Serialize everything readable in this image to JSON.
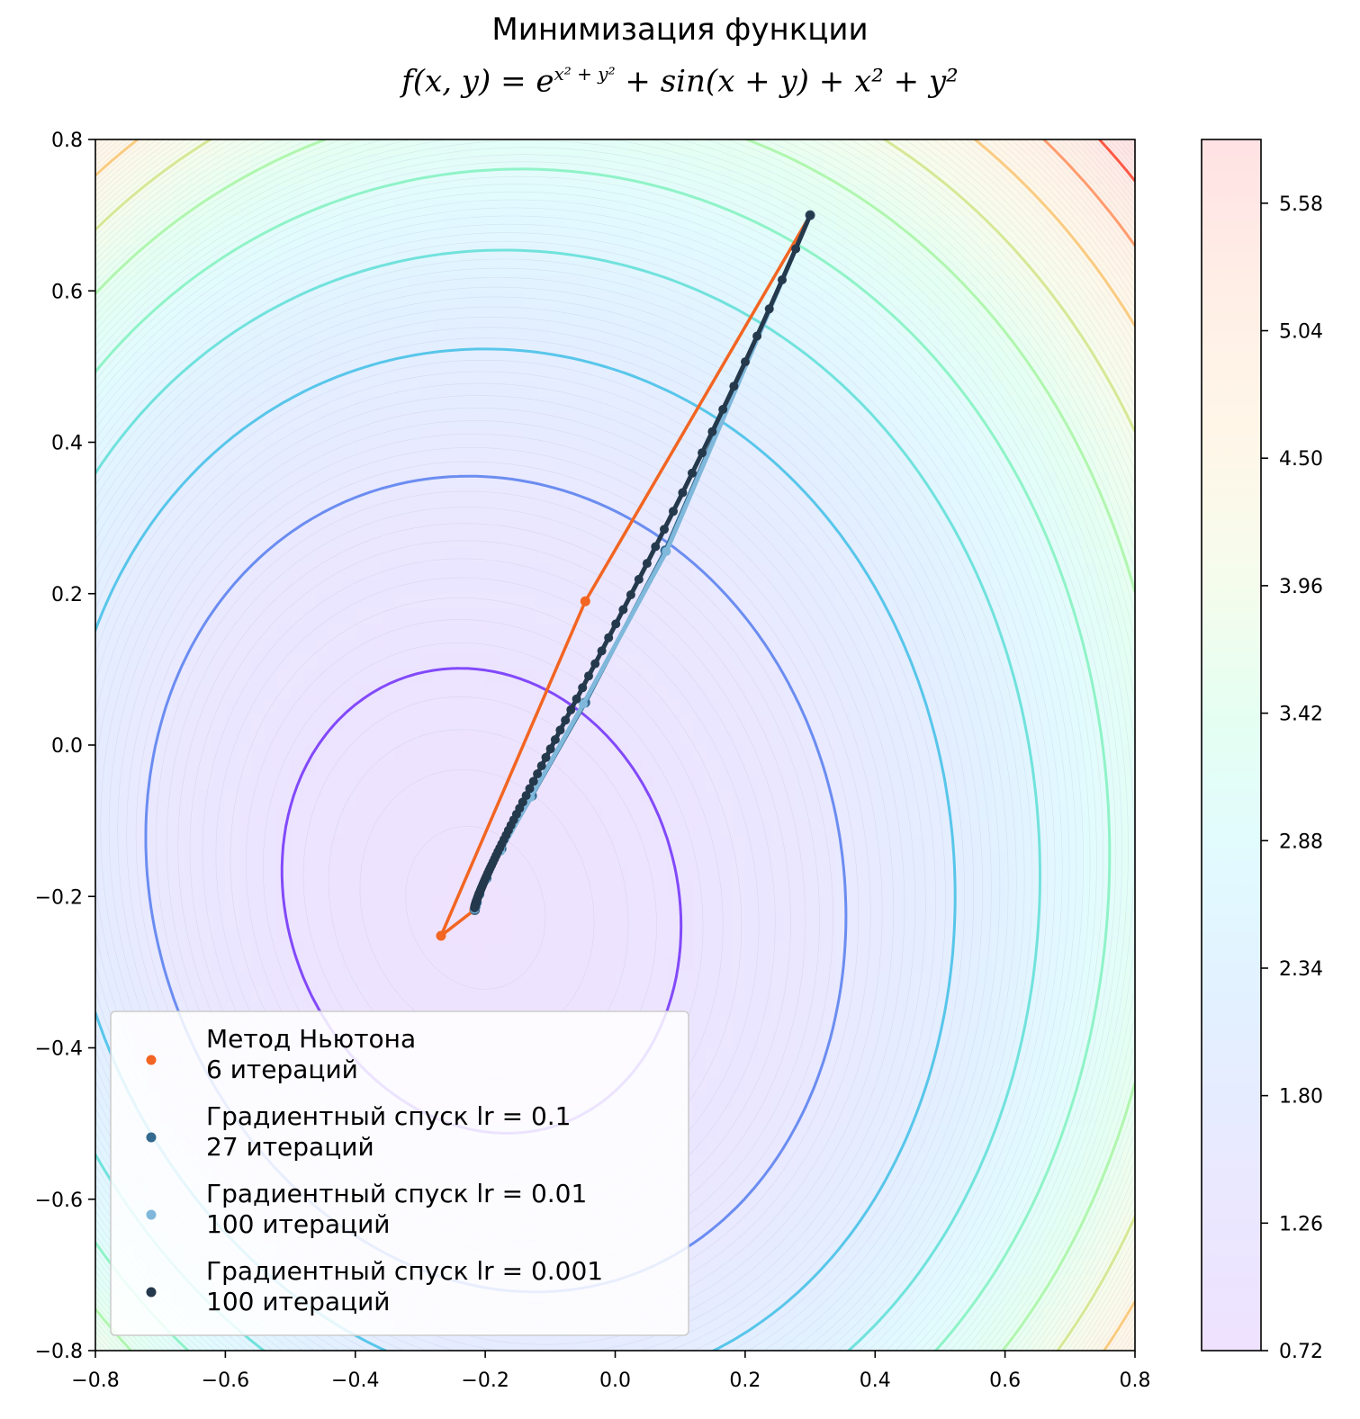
{
  "header": {
    "title": "Минимизация функции",
    "formula_base": "f(x, y) = e",
    "formula_exp": "x² + y²",
    "formula_rest": " + sin(x + y) + x² + y²"
  },
  "chart_data": {
    "type": "contour",
    "title": "Минимизация функции",
    "subtitle": "f(x,y) = e^{x^2+y^2} + sin(x+y) + x^2 + y^2",
    "xlabel": "",
    "ylabel": "",
    "xlim": [
      -0.8,
      0.8
    ],
    "ylim": [
      -0.8,
      0.8
    ],
    "x_ticks": [
      -0.8,
      -0.6,
      -0.4,
      -0.2,
      0.0,
      0.2,
      0.4,
      0.6,
      0.8
    ],
    "x_tick_labels": [
      "−0.8",
      "−0.6",
      "−0.4",
      "−0.2",
      "0.0",
      "0.2",
      "0.4",
      "0.6",
      "0.8"
    ],
    "y_ticks": [
      -0.8,
      -0.6,
      -0.4,
      -0.2,
      0.0,
      0.2,
      0.4,
      0.6,
      0.8
    ],
    "y_tick_labels": [
      "−0.8",
      "−0.6",
      "−0.4",
      "−0.2",
      "0.0",
      "0.2",
      "0.4",
      "0.6",
      "0.8"
    ],
    "colorbar": {
      "ticks": [
        0.72,
        1.26,
        1.8,
        2.34,
        2.88,
        3.42,
        3.96,
        4.5,
        5.04,
        5.58
      ],
      "tick_labels": [
        "0.72",
        "1.26",
        "1.80",
        "2.34",
        "2.88",
        "3.42",
        "3.96",
        "4.50",
        "5.04",
        "5.58"
      ],
      "range": [
        0.72,
        5.85
      ]
    },
    "contour_levels": [
      1.0,
      1.5,
      2.0,
      2.5,
      3.0,
      3.5,
      4.0,
      4.5,
      5.0,
      5.5,
      6.0
    ],
    "legend_position": "lower-left",
    "series": [
      {
        "name": "Метод Ньютона",
        "iterations_label": "6 итераций",
        "color": "#f26522",
        "points": [
          [
            0.3,
            0.7
          ],
          [
            -0.046,
            0.19
          ],
          [
            -0.268,
            -0.252
          ],
          [
            -0.217,
            -0.218
          ],
          [
            -0.216,
            -0.218
          ],
          [
            -0.216,
            -0.218
          ]
        ]
      },
      {
        "name": "Градиентный спуск lr = 0.1",
        "iterations_label": "27 итераций",
        "color": "#346a8f",
        "points": [
          [
            0.3,
            0.7
          ],
          [
            0.077,
            0.257
          ],
          [
            -0.046,
            0.056
          ],
          [
            -0.128,
            -0.067
          ],
          [
            -0.175,
            -0.137
          ],
          [
            -0.198,
            -0.176
          ],
          [
            -0.209,
            -0.197
          ],
          [
            -0.213,
            -0.208
          ],
          [
            -0.215,
            -0.213
          ],
          [
            -0.216,
            -0.216
          ],
          [
            -0.216,
            -0.217
          ],
          [
            -0.216,
            -0.218
          ]
        ]
      },
      {
        "name": "Градиентный спуск lr = 0.01",
        "iterations_label": "100 итераций",
        "color": "#7fb8db",
        "start": [
          0.3,
          0.7
        ],
        "lr": 0.01,
        "steps": 100
      },
      {
        "name": "Градиентный спуск lr = 0.001",
        "iterations_label": "100 итераций",
        "color": "#25394d",
        "start": [
          0.3,
          0.7
        ],
        "lr": 0.001,
        "steps": 100
      }
    ]
  }
}
